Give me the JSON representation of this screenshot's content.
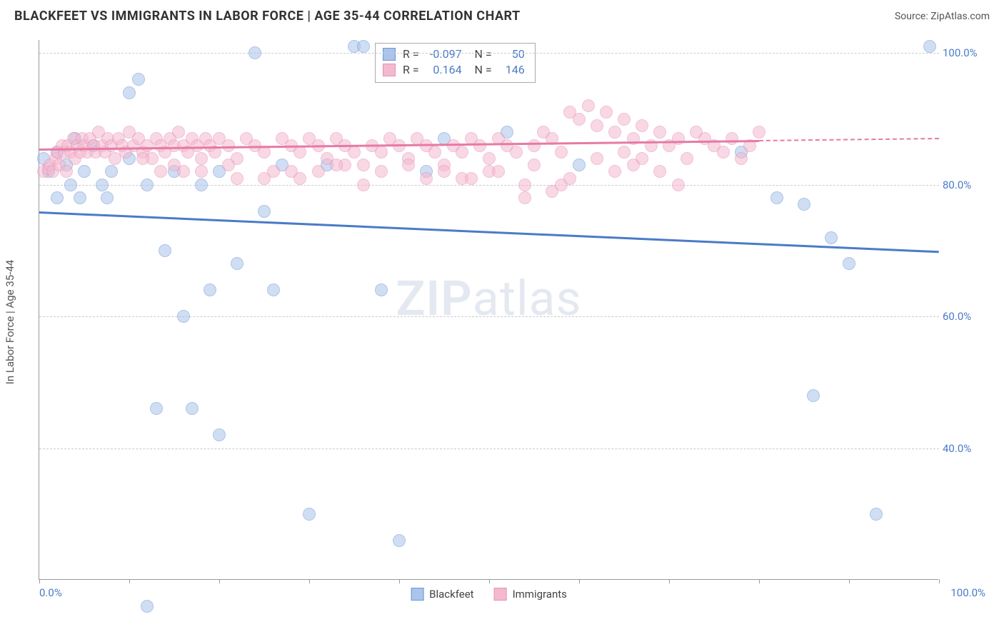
{
  "title": "BLACKFEET VS IMMIGRANTS IN LABOR FORCE | AGE 35-44 CORRELATION CHART",
  "source": "Source: ZipAtlas.com",
  "ylabel": "In Labor Force | Age 35-44",
  "watermark": "ZIPatlas",
  "chart": {
    "type": "scatter",
    "xlim": [
      0,
      100
    ],
    "ylim": [
      20,
      102
    ],
    "yticks": [
      40,
      60,
      80,
      100
    ],
    "ytick_labels": [
      "40.0%",
      "60.0%",
      "80.0%",
      "100.0%"
    ],
    "xticks": [
      0,
      10,
      20,
      30,
      40,
      50,
      60,
      70,
      80,
      90,
      100
    ],
    "x_end_labels": [
      "0.0%",
      "100.0%"
    ],
    "grid_color": "#cccccc",
    "background_color": "#ffffff",
    "marker_radius": 9,
    "marker_opacity": 0.55,
    "series": [
      {
        "name": "Blackfeet",
        "color": "#4a7bc8",
        "fill": "#aac4eb",
        "stroke": "#6a95d6",
        "R": "-0.097",
        "N": "50",
        "trend": {
          "x1": 0,
          "y1": 76,
          "x2": 100,
          "y2": 70,
          "dash_from": 100
        },
        "points": [
          [
            0.5,
            84
          ],
          [
            1,
            82
          ],
          [
            2,
            85
          ],
          [
            2,
            78
          ],
          [
            3,
            83
          ],
          [
            3.5,
            80
          ],
          [
            4,
            87
          ],
          [
            4.5,
            78
          ],
          [
            5,
            82
          ],
          [
            6,
            86
          ],
          [
            7,
            80
          ],
          [
            7.5,
            78
          ],
          [
            8,
            82
          ],
          [
            10,
            94
          ],
          [
            10,
            84
          ],
          [
            11,
            96
          ],
          [
            12,
            16
          ],
          [
            12,
            80
          ],
          [
            13,
            46
          ],
          [
            14,
            70
          ],
          [
            15,
            82
          ],
          [
            16,
            60
          ],
          [
            17,
            46
          ],
          [
            18,
            80
          ],
          [
            19,
            64
          ],
          [
            20,
            42
          ],
          [
            20,
            82
          ],
          [
            22,
            68
          ],
          [
            24,
            100
          ],
          [
            25,
            76
          ],
          [
            26,
            64
          ],
          [
            27,
            83
          ],
          [
            30,
            30
          ],
          [
            32,
            83
          ],
          [
            35,
            101
          ],
          [
            36,
            101
          ],
          [
            38,
            64
          ],
          [
            40,
            26
          ],
          [
            43,
            82
          ],
          [
            45,
            87
          ],
          [
            52,
            88
          ],
          [
            60,
            83
          ],
          [
            78,
            85
          ],
          [
            82,
            78
          ],
          [
            85,
            77
          ],
          [
            86,
            48
          ],
          [
            88,
            72
          ],
          [
            90,
            68
          ],
          [
            93,
            30
          ],
          [
            99,
            101
          ]
        ]
      },
      {
        "name": "Immigrants",
        "color": "#e67aa4",
        "fill": "#f4b9cf",
        "stroke": "#e88fb2",
        "R": "0.164",
        "N": "146",
        "trend": {
          "x1": 0,
          "y1": 85.5,
          "x2": 80,
          "y2": 86.8,
          "dash_from": 80,
          "dash_to": 100
        },
        "points": [
          [
            0.5,
            82
          ],
          [
            1,
            82.5
          ],
          [
            1.2,
            83
          ],
          [
            1.5,
            82
          ],
          [
            1.8,
            84
          ],
          [
            2,
            85
          ],
          [
            2.2,
            83
          ],
          [
            2.5,
            86
          ],
          [
            2.8,
            85
          ],
          [
            3,
            82
          ],
          [
            3.2,
            86
          ],
          [
            3.5,
            85
          ],
          [
            3.8,
            87
          ],
          [
            4,
            84
          ],
          [
            4.2,
            86
          ],
          [
            4.5,
            85
          ],
          [
            4.8,
            87
          ],
          [
            5,
            86
          ],
          [
            5.3,
            85
          ],
          [
            5.6,
            87
          ],
          [
            6,
            86
          ],
          [
            6.3,
            85
          ],
          [
            6.6,
            88
          ],
          [
            7,
            86
          ],
          [
            7.3,
            85
          ],
          [
            7.6,
            87
          ],
          [
            8,
            86
          ],
          [
            8.4,
            84
          ],
          [
            8.8,
            87
          ],
          [
            9.2,
            86
          ],
          [
            9.6,
            85
          ],
          [
            10,
            88
          ],
          [
            10.5,
            86
          ],
          [
            11,
            87
          ],
          [
            11.5,
            85
          ],
          [
            12,
            86
          ],
          [
            12.5,
            84
          ],
          [
            13,
            87
          ],
          [
            13.5,
            86
          ],
          [
            14,
            85
          ],
          [
            14.5,
            87
          ],
          [
            15,
            86
          ],
          [
            15.5,
            88
          ],
          [
            16,
            86
          ],
          [
            16.5,
            85
          ],
          [
            17,
            87
          ],
          [
            17.5,
            86
          ],
          [
            18,
            84
          ],
          [
            18.5,
            87
          ],
          [
            19,
            86
          ],
          [
            19.5,
            85
          ],
          [
            20,
            87
          ],
          [
            21,
            86
          ],
          [
            22,
            84
          ],
          [
            23,
            87
          ],
          [
            24,
            86
          ],
          [
            25,
            85
          ],
          [
            26,
            82
          ],
          [
            27,
            87
          ],
          [
            28,
            86
          ],
          [
            29,
            85
          ],
          [
            30,
            87
          ],
          [
            31,
            86
          ],
          [
            32,
            84
          ],
          [
            33,
            87
          ],
          [
            34,
            86
          ],
          [
            35,
            85
          ],
          [
            36,
            83
          ],
          [
            37,
            86
          ],
          [
            38,
            85
          ],
          [
            39,
            87
          ],
          [
            40,
            86
          ],
          [
            41,
            84
          ],
          [
            42,
            87
          ],
          [
            43,
            86
          ],
          [
            44,
            85
          ],
          [
            45,
            83
          ],
          [
            46,
            86
          ],
          [
            47,
            85
          ],
          [
            48,
            87
          ],
          [
            49,
            86
          ],
          [
            50,
            84
          ],
          [
            51,
            87
          ],
          [
            52,
            86
          ],
          [
            53,
            85
          ],
          [
            54,
            80
          ],
          [
            55,
            86
          ],
          [
            56,
            88
          ],
          [
            57,
            87
          ],
          [
            58,
            85
          ],
          [
            59,
            91
          ],
          [
            60,
            90
          ],
          [
            61,
            92
          ],
          [
            62,
            89
          ],
          [
            63,
            91
          ],
          [
            64,
            88
          ],
          [
            65,
            90
          ],
          [
            66,
            87
          ],
          [
            67,
            89
          ],
          [
            68,
            86
          ],
          [
            69,
            88
          ],
          [
            70,
            86
          ],
          [
            71,
            87
          ],
          [
            72,
            84
          ],
          [
            73,
            88
          ],
          [
            74,
            87
          ],
          [
            75,
            86
          ],
          [
            76,
            85
          ],
          [
            77,
            87
          ],
          [
            78,
            84
          ],
          [
            79,
            86
          ],
          [
            80,
            88
          ],
          [
            54,
            78
          ],
          [
            57,
            79
          ],
          [
            28,
            82
          ],
          [
            29,
            81
          ],
          [
            34,
            83
          ],
          [
            36,
            80
          ],
          [
            45,
            82
          ],
          [
            47,
            81
          ],
          [
            16,
            82
          ],
          [
            22,
            81
          ],
          [
            43,
            81
          ],
          [
            50,
            82
          ],
          [
            58,
            80
          ],
          [
            64,
            82
          ],
          [
            65,
            85
          ],
          [
            67,
            84
          ],
          [
            69,
            82
          ],
          [
            71,
            80
          ],
          [
            11.5,
            84
          ],
          [
            13.5,
            82
          ],
          [
            15,
            83
          ],
          [
            18,
            82
          ],
          [
            21,
            83
          ],
          [
            25,
            81
          ],
          [
            31,
            82
          ],
          [
            33,
            83
          ],
          [
            38,
            82
          ],
          [
            41,
            83
          ],
          [
            48,
            81
          ],
          [
            51,
            82
          ],
          [
            55,
            83
          ],
          [
            59,
            81
          ],
          [
            62,
            84
          ],
          [
            66,
            83
          ]
        ]
      }
    ]
  },
  "bottom_legend": [
    {
      "label": "Blackfeet",
      "fill": "#aac4eb",
      "stroke": "#6a95d6"
    },
    {
      "label": "Immigrants",
      "fill": "#f4b9cf",
      "stroke": "#e88fb2"
    }
  ]
}
